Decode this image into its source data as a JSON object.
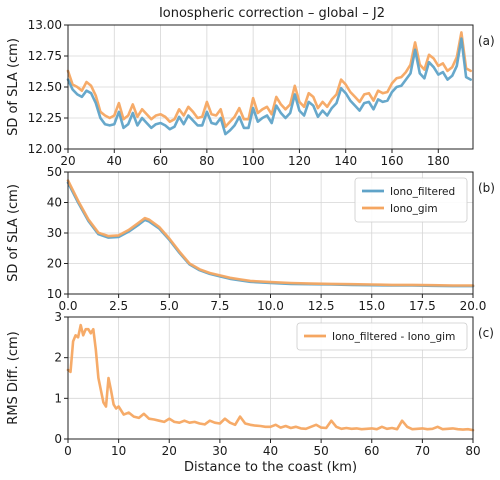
{
  "figure": {
    "title": "Ionospheric correction – global – J2"
  },
  "chart_data": [
    {
      "type": "line",
      "panel": "(a)",
      "ylabel": "SD of SLA (cm)",
      "xlabel": "",
      "xlim": [
        20,
        195
      ],
      "ylim": [
        12.0,
        13.0
      ],
      "xticks": [
        "20",
        "40",
        "60",
        "80",
        "100",
        "120",
        "140",
        "160",
        "180"
      ],
      "xtick_values": [
        20,
        40,
        60,
        80,
        100,
        120,
        140,
        160,
        180
      ],
      "yticks": [
        "12.00",
        "12.25",
        "12.50",
        "12.75",
        "13.00"
      ],
      "ytick_values": [
        12.0,
        12.25,
        12.5,
        12.75,
        13.0
      ],
      "grid": true,
      "series": [
        {
          "color": "#f5a661",
          "x": [
            20,
            22,
            24,
            26,
            28,
            30,
            32,
            34,
            36,
            38,
            40,
            42,
            44,
            46,
            48,
            50,
            52,
            54,
            56,
            58,
            60,
            62,
            64,
            66,
            68,
            70,
            72,
            74,
            76,
            78,
            80,
            82,
            84,
            86,
            88,
            90,
            92,
            94,
            96,
            98,
            100,
            102,
            104,
            106,
            108,
            110,
            112,
            114,
            116,
            118,
            120,
            122,
            124,
            126,
            128,
            130,
            132,
            134,
            136,
            138,
            140,
            142,
            144,
            146,
            148,
            150,
            152,
            154,
            156,
            158,
            160,
            162,
            164,
            166,
            168,
            170,
            172,
            174,
            176,
            178,
            180,
            182,
            184,
            186,
            188,
            190,
            192,
            194
          ],
          "values": [
            12.63,
            12.52,
            12.5,
            12.47,
            12.54,
            12.51,
            12.43,
            12.3,
            12.27,
            12.25,
            12.27,
            12.37,
            12.24,
            12.27,
            12.36,
            12.26,
            12.32,
            12.28,
            12.24,
            12.27,
            12.28,
            12.26,
            12.22,
            12.24,
            12.32,
            12.27,
            12.34,
            12.3,
            12.25,
            12.26,
            12.38,
            12.28,
            12.27,
            12.32,
            12.18,
            12.22,
            12.26,
            12.33,
            12.24,
            12.24,
            12.41,
            12.29,
            12.32,
            12.34,
            12.28,
            12.42,
            12.36,
            12.32,
            12.36,
            12.51,
            12.38,
            12.34,
            12.45,
            12.42,
            12.33,
            12.38,
            12.34,
            12.4,
            12.44,
            12.56,
            12.52,
            12.46,
            12.42,
            12.38,
            12.44,
            12.45,
            12.39,
            12.47,
            12.45,
            12.46,
            12.53,
            12.57,
            12.58,
            12.62,
            12.68,
            12.86,
            12.68,
            12.64,
            12.76,
            12.73,
            12.67,
            12.69,
            12.63,
            12.66,
            12.74,
            12.94,
            12.65,
            12.63
          ]
        },
        {
          "color": "#5fa3c8",
          "x": [
            20,
            22,
            24,
            26,
            28,
            30,
            32,
            34,
            36,
            38,
            40,
            42,
            44,
            46,
            48,
            50,
            52,
            54,
            56,
            58,
            60,
            62,
            64,
            66,
            68,
            70,
            72,
            74,
            76,
            78,
            80,
            82,
            84,
            86,
            88,
            90,
            92,
            94,
            96,
            98,
            100,
            102,
            104,
            106,
            108,
            110,
            112,
            114,
            116,
            118,
            120,
            122,
            124,
            126,
            128,
            130,
            132,
            134,
            136,
            138,
            140,
            142,
            144,
            146,
            148,
            150,
            152,
            154,
            156,
            158,
            160,
            162,
            164,
            166,
            168,
            170,
            172,
            174,
            176,
            178,
            180,
            182,
            184,
            186,
            188,
            190,
            192,
            194
          ],
          "values": [
            12.56,
            12.48,
            12.44,
            12.42,
            12.47,
            12.45,
            12.37,
            12.25,
            12.2,
            12.19,
            12.2,
            12.3,
            12.17,
            12.2,
            12.29,
            12.19,
            12.25,
            12.21,
            12.17,
            12.2,
            12.21,
            12.19,
            12.16,
            12.18,
            12.26,
            12.2,
            12.27,
            12.23,
            12.19,
            12.19,
            12.3,
            12.21,
            12.2,
            12.25,
            12.12,
            12.15,
            12.19,
            12.26,
            12.17,
            12.17,
            12.33,
            12.22,
            12.25,
            12.27,
            12.21,
            12.35,
            12.29,
            12.25,
            12.29,
            12.44,
            12.31,
            12.27,
            12.38,
            12.35,
            12.26,
            12.31,
            12.27,
            12.33,
            12.37,
            12.49,
            12.45,
            12.39,
            12.35,
            12.31,
            12.37,
            12.38,
            12.32,
            12.4,
            12.38,
            12.39,
            12.46,
            12.5,
            12.51,
            12.56,
            12.61,
            12.8,
            12.61,
            12.57,
            12.7,
            12.66,
            12.6,
            12.62,
            12.56,
            12.59,
            12.67,
            12.89,
            12.58,
            12.56
          ]
        }
      ]
    },
    {
      "type": "line",
      "panel": "(b)",
      "ylabel": "SD of SLA (cm)",
      "xlabel": "",
      "xlim": [
        0,
        20
      ],
      "ylim": [
        10,
        50
      ],
      "xticks": [
        "0.0",
        "2.5",
        "5.0",
        "7.5",
        "10.0",
        "12.5",
        "15.0",
        "17.5",
        "20.0"
      ],
      "xtick_values": [
        0,
        2.5,
        5,
        7.5,
        10,
        12.5,
        15,
        17.5,
        20
      ],
      "yticks": [
        "10",
        "20",
        "30",
        "40",
        "50"
      ],
      "ytick_values": [
        10,
        20,
        30,
        40,
        50
      ],
      "grid": true,
      "legend": "top-right",
      "series": [
        {
          "name": "Iono_filtered",
          "color": "#5fa3c8",
          "x": [
            0,
            0.5,
            1.0,
            1.5,
            2.0,
            2.5,
            3.0,
            3.5,
            3.8,
            4.0,
            4.5,
            5.0,
            5.5,
            6.0,
            6.5,
            7.0,
            7.5,
            8.0,
            8.5,
            9.0,
            10.0,
            11.0,
            12.0,
            13.0,
            14.0,
            15.0,
            16.0,
            17.0,
            18.0,
            19.0,
            20.0
          ],
          "values": [
            46.5,
            40.0,
            34.0,
            29.6,
            28.5,
            28.7,
            30.5,
            32.8,
            34.3,
            33.8,
            31.5,
            27.8,
            23.5,
            19.7,
            17.8,
            16.6,
            15.8,
            15.0,
            14.5,
            14.0,
            13.6,
            13.3,
            13.2,
            13.1,
            13.0,
            12.9,
            12.8,
            12.8,
            12.7,
            12.6,
            12.6
          ]
        },
        {
          "name": "Iono_gim",
          "color": "#f5a661",
          "x": [
            0,
            0.5,
            1.0,
            1.5,
            2.0,
            2.5,
            3.0,
            3.5,
            3.8,
            4.0,
            4.5,
            5.0,
            5.5,
            6.0,
            6.5,
            7.0,
            7.5,
            8.0,
            8.5,
            9.0,
            10.0,
            11.0,
            12.0,
            13.0,
            14.0,
            15.0,
            16.0,
            17.0,
            18.0,
            19.0,
            20.0
          ],
          "values": [
            47.2,
            40.6,
            34.5,
            30.1,
            29.0,
            29.2,
            31.0,
            33.4,
            34.9,
            34.4,
            32.0,
            28.2,
            23.9,
            20.0,
            18.1,
            16.9,
            16.1,
            15.3,
            14.8,
            14.3,
            13.9,
            13.6,
            13.4,
            13.3,
            13.2,
            13.1,
            13.0,
            13.0,
            12.9,
            12.8,
            12.8
          ]
        }
      ]
    },
    {
      "type": "line",
      "panel": "(c)",
      "ylabel": "RMS Diff. (cm)",
      "xlabel": "Distance to the coast (km)",
      "xlim": [
        0,
        80
      ],
      "ylim": [
        0,
        3
      ],
      "xticks": [
        "0",
        "10",
        "20",
        "30",
        "40",
        "50",
        "60",
        "70",
        "80"
      ],
      "xtick_values": [
        0,
        10,
        20,
        30,
        40,
        50,
        60,
        70,
        80
      ],
      "yticks": [
        "0",
        "1",
        "2",
        "3"
      ],
      "ytick_values": [
        0,
        1,
        2,
        3
      ],
      "grid": true,
      "legend": "top-right",
      "series": [
        {
          "name": "Iono_filtered - Iono_gim",
          "color": "#f5a661",
          "x": [
            0,
            0.5,
            1,
            1.5,
            2,
            2.5,
            3,
            3.5,
            4,
            4.5,
            5,
            5.5,
            6,
            6.5,
            7,
            7.5,
            8,
            8.5,
            9,
            9.5,
            10,
            11,
            12,
            13,
            14,
            15,
            16,
            17,
            18,
            19,
            20,
            21,
            22,
            23,
            24,
            25,
            26,
            27,
            28,
            29,
            30,
            31,
            32,
            33,
            34,
            35,
            36,
            37,
            38,
            39,
            40,
            41,
            42,
            43,
            44,
            45,
            46,
            47,
            48,
            49,
            50,
            51,
            52,
            53,
            54,
            55,
            56,
            57,
            58,
            59,
            60,
            61,
            62,
            63,
            64,
            65,
            66,
            67,
            68,
            69,
            70,
            71,
            72,
            73,
            74,
            75,
            76,
            77,
            78,
            79,
            80
          ],
          "values": [
            1.7,
            1.65,
            2.4,
            2.55,
            2.5,
            2.8,
            2.55,
            2.7,
            2.7,
            2.6,
            2.7,
            2.2,
            1.5,
            1.2,
            0.9,
            0.8,
            1.5,
            1.2,
            0.85,
            0.75,
            0.8,
            0.6,
            0.65,
            0.55,
            0.52,
            0.62,
            0.5,
            0.48,
            0.45,
            0.42,
            0.5,
            0.42,
            0.4,
            0.45,
            0.4,
            0.42,
            0.38,
            0.36,
            0.45,
            0.4,
            0.38,
            0.5,
            0.4,
            0.35,
            0.55,
            0.38,
            0.35,
            0.33,
            0.32,
            0.3,
            0.3,
            0.35,
            0.28,
            0.32,
            0.27,
            0.3,
            0.26,
            0.25,
            0.3,
            0.35,
            0.28,
            0.27,
            0.45,
            0.3,
            0.25,
            0.27,
            0.25,
            0.26,
            0.24,
            0.25,
            0.26,
            0.24,
            0.3,
            0.25,
            0.27,
            0.24,
            0.45,
            0.3,
            0.24,
            0.25,
            0.26,
            0.24,
            0.25,
            0.3,
            0.24,
            0.25,
            0.26,
            0.24,
            0.23,
            0.24,
            0.22
          ]
        }
      ]
    }
  ]
}
